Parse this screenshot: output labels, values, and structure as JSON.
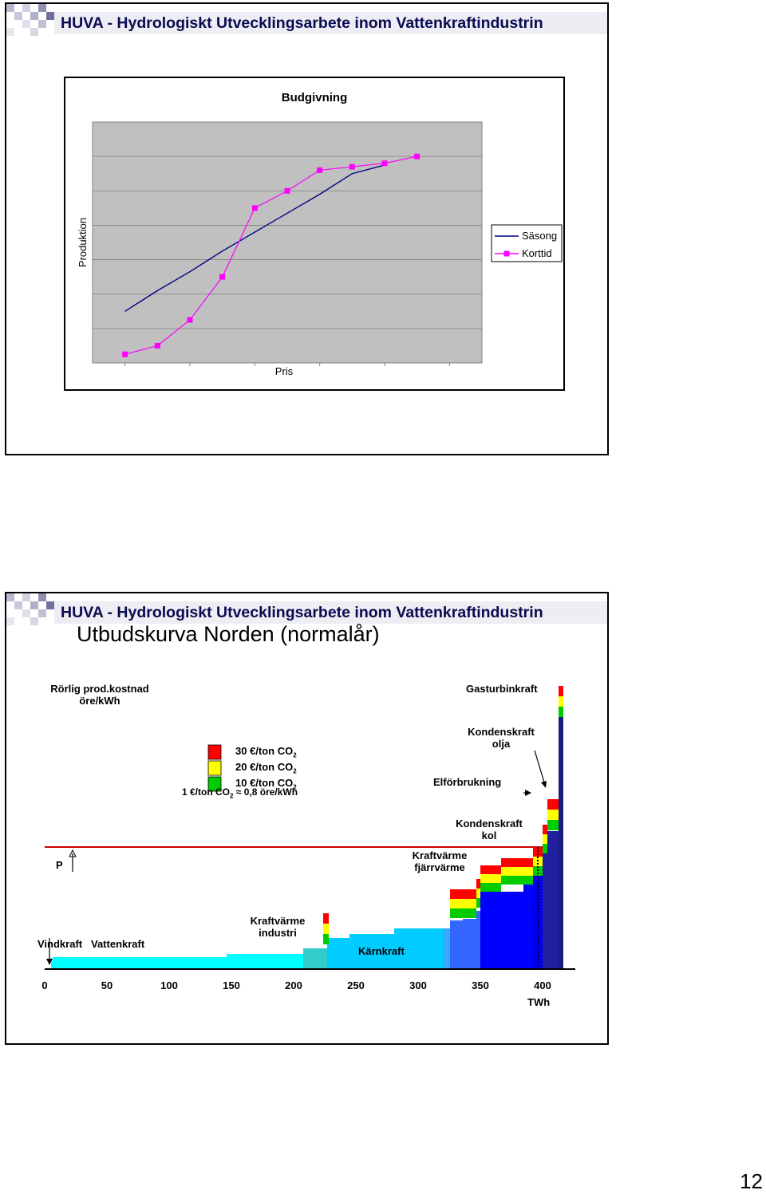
{
  "header": {
    "title": "HUVA - Hydrologiskt Utvecklingsarbete inom Vattenkraftindustrin"
  },
  "colors": {
    "header_text": "#0a0a50",
    "plot_bg": "#c0c0c0",
    "season_line": "#000080",
    "short_term_line": "#ff00ff",
    "co2_30": "#ff0000",
    "co2_20": "#ffff00",
    "co2_10": "#00cc00",
    "hydro": "#00ffff",
    "nuclear": "#00ccff",
    "coal": "#0000ff",
    "oil": "#1a1a80",
    "price_line": "#cc0000"
  },
  "slide1": {
    "chart_data": {
      "type": "line",
      "title": "Budgivning",
      "xlabel": "Pris",
      "ylabel": "Produktion",
      "x": [
        1,
        2,
        3,
        4,
        5,
        6,
        7,
        8,
        9,
        10
      ],
      "ylim": [
        0,
        7
      ],
      "xlim": [
        0,
        12
      ],
      "grid": true,
      "legend_position": "right",
      "series": [
        {
          "name": "Säsong",
          "x": [
            1,
            2,
            3,
            4,
            5,
            6,
            7,
            8,
            9
          ],
          "values": [
            1.5,
            2.1,
            2.65,
            3.25,
            3.8,
            4.35,
            4.9,
            5.5,
            5.75
          ]
        },
        {
          "name": "Korttid",
          "x": [
            1,
            2,
            3,
            4,
            5,
            6,
            7,
            8,
            9,
            10
          ],
          "values": [
            0.25,
            0.5,
            1.25,
            2.5,
            4.5,
            5.0,
            5.6,
            5.7,
            5.8,
            6.0
          ]
        }
      ]
    }
  },
  "slide2": {
    "subtitle": "Utbudskurva Norden (normalår)",
    "y_axis_label_1": "Rörlig prod.kostnad",
    "y_axis_label_2": "öre/kWh",
    "x_unit": "TWh",
    "x_ticks": [
      "0",
      "50",
      "100",
      "150",
      "200",
      "250",
      "300",
      "350",
      "400"
    ],
    "legend": [
      {
        "label": "30 €/ton CO",
        "sub": "2",
        "color": "co2_30"
      },
      {
        "label": "20 €/ton CO",
        "sub": "2",
        "color": "co2_20"
      },
      {
        "label": "10 €/ton CO",
        "sub": "2",
        "color": "co2_10"
      }
    ],
    "conversion_note": "1 €/ton CO",
    "conversion_sub": "2",
    "conversion_rest": " ≈ 0,8 öre/kWh",
    "labels": {
      "gasturbin": "Gasturbinkraft",
      "kond_olja_1": "Kondenskraft",
      "kond_olja_2": "olja",
      "elforbrukning": "Elförbrukning",
      "kond_kol_1": "Kondenskraft",
      "kond_kol_2": "kol",
      "kv_fjarr_1": "Kraftvärme",
      "kv_fjarr_2": "fjärrvärme",
      "kv_ind_1": "Kraftvärme",
      "kv_ind_2": "industri",
      "vindkraft": "Vindkraft",
      "vattenkraft": "Vattenkraft",
      "karnkraft": "Kärnkraft",
      "p": "P"
    }
  },
  "page_number": "12"
}
